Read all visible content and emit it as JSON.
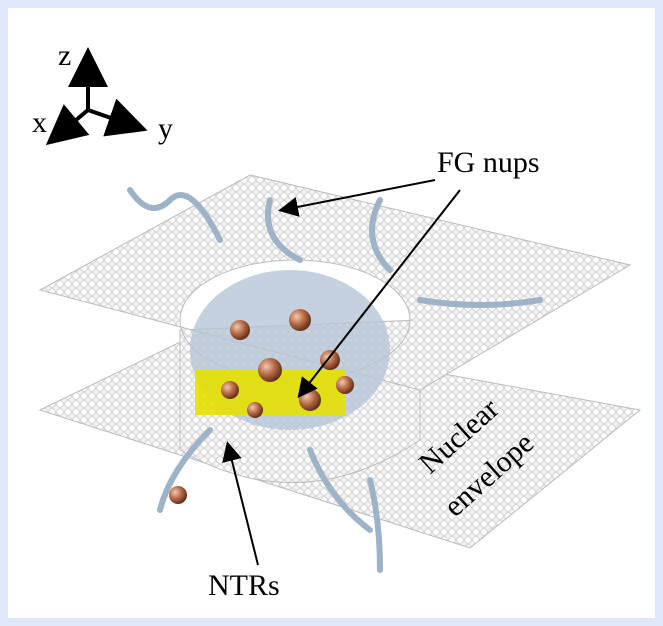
{
  "axes": {
    "z": "z",
    "x": "x",
    "y": "y"
  },
  "labels": {
    "fg_nups": "FG nups",
    "ntrs": "NTRs",
    "nuclear_envelope": [
      "Nuclear",
      "envelope"
    ]
  }
}
